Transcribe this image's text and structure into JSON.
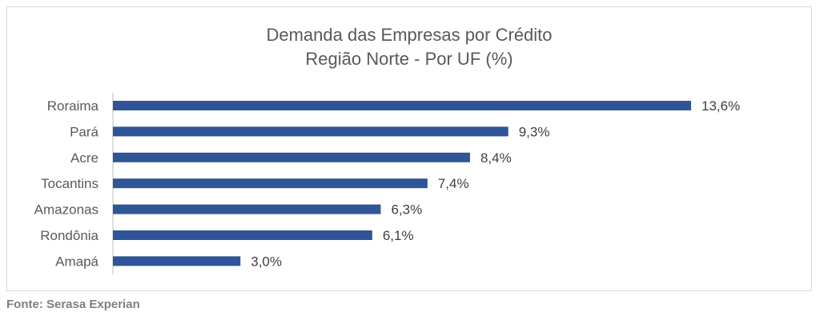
{
  "chart_data": {
    "type": "bar",
    "orientation": "horizontal",
    "title": "Demanda das Empresas por Crédito",
    "subtitle": "Região Norte - Por UF (%)",
    "categories": [
      "Roraima",
      "Pará",
      "Acre",
      "Tocantins",
      "Amazonas",
      "Rondônia",
      "Amapá"
    ],
    "values": [
      13.6,
      9.3,
      8.4,
      7.4,
      6.3,
      6.1,
      3.0
    ],
    "data_labels": [
      "13,6%",
      "9,3%",
      "8,4%",
      "7,4%",
      "6,3%",
      "6,1%",
      "3,0%"
    ],
    "xlim": [
      0,
      13.6
    ],
    "bar_color": "#2f5597",
    "grid": false,
    "legend": "none"
  },
  "source": "Fonte: Serasa Experian"
}
